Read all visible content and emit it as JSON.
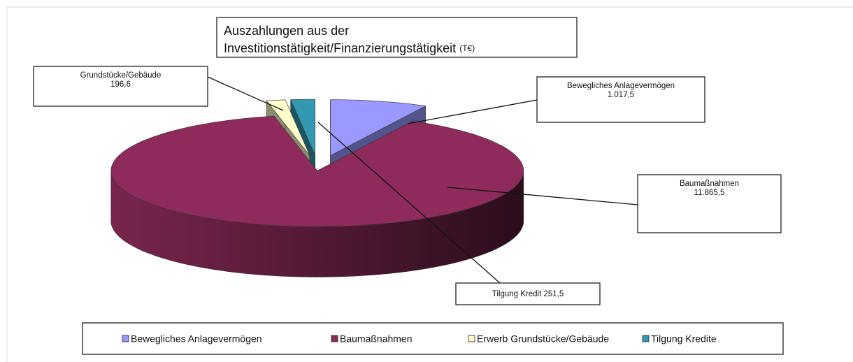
{
  "chart_data": {
    "type": "pie3d",
    "title_lines": [
      "Auszahlungen  aus der",
      "Investitionstätigkeit/Finanzierungstätigkeit"
    ],
    "title_unit": "(T€)",
    "categories": [
      "Bewegliches Anlagevermögen",
      "Baumaßnahmen",
      "Grundstücke/Gebäude",
      "Tilgung Kredit"
    ],
    "values": [
      1017.5,
      11865.5,
      196.6,
      251.5
    ],
    "value_labels": [
      "1.017,5",
      "11.865,5",
      "196,6",
      "251,5"
    ],
    "colors": [
      "#9999ff",
      "#8e2b5c",
      "#ffffcc",
      "#3399b3"
    ],
    "legend": [
      "Bewegliches Anlagevermögen",
      "Baumaßnahmen",
      "Erwerb Grundstücke/Gebäude",
      "Tilgung Kredite"
    ]
  }
}
